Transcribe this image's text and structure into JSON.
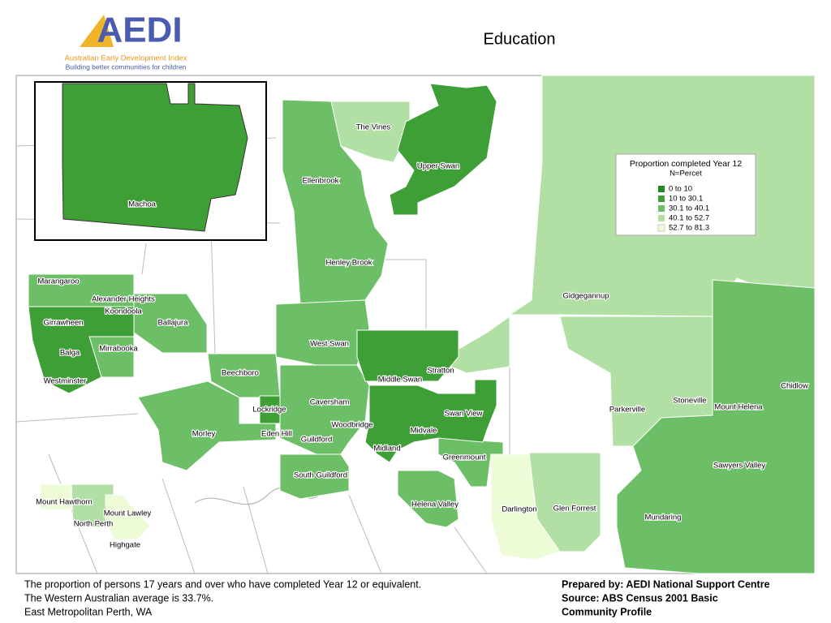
{
  "title": "Education",
  "logo": {
    "mark": "AEDI",
    "name": "Australian Early Development Index",
    "tagline": "Building better communities for children"
  },
  "legend": {
    "title": "Proportion completed Year 12",
    "subtitle": "N=Percet",
    "items": [
      "0 to 10",
      "10 to 30.1",
      "30.1 to 40.1",
      "40.1 to 52.7",
      "52.7 to 81.3"
    ]
  },
  "map": {
    "inset_label": "Machoa",
    "suburbs": [
      "The Vines",
      "Upper Swan",
      "Ellenbrook",
      "Henley Brook",
      "Gidgegannup",
      "Marangaroo",
      "Alexander Heights",
      "Koondoola",
      "Girrawheen",
      "Ballajura",
      "Balga",
      "Mirrabooka",
      "West Swan",
      "Stratton",
      "Middle Swan",
      "Westminster",
      "Chidlow",
      "Beechboro",
      "Caversham",
      "Stoneville",
      "Mount Helena",
      "Parkerville",
      "Lockridge",
      "Swan View",
      "Woodbridge",
      "Midvale",
      "Eden Hill",
      "Morley",
      "Guildford",
      "Midland",
      "Greenmount",
      "Sawyers Valley",
      "South Guildford",
      "Mount Hawthorn",
      "Helena Valley",
      "Glen Forrest",
      "Darlington",
      "Mount Lawley",
      "Mundaring",
      "North Perth",
      "Highgate"
    ]
  },
  "footer": {
    "left": [
      "The proportion of persons 17 years and over who have completed Year 12 or equivalent.",
      "The Western Australian average is 33.7%.",
      "East Metropolitan Perth, WA"
    ],
    "right": [
      "Prepared by: AEDI National Support Centre",
      "Source: ABS Census 2001 Basic",
      "Community Profile"
    ]
  }
}
